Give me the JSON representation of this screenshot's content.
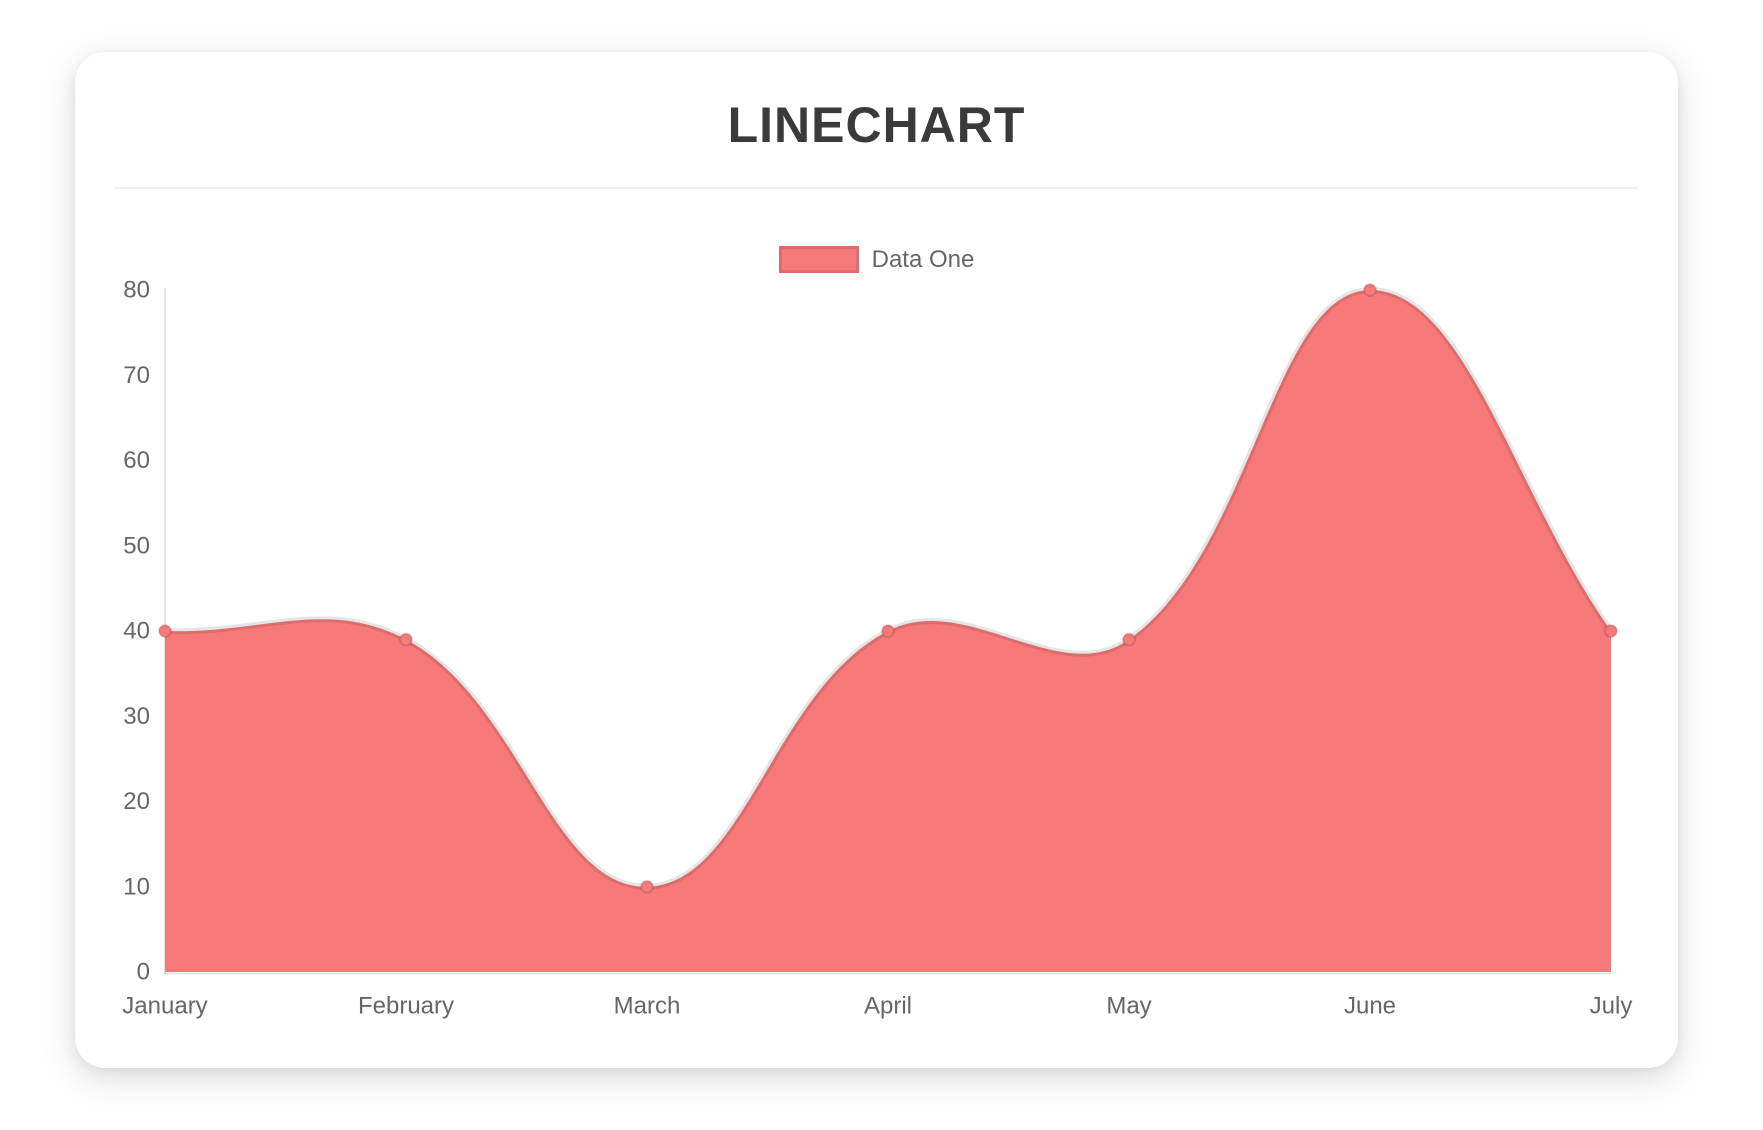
{
  "title": "LINECHART",
  "legend": {
    "label": "Data One",
    "box_color": "#f87979",
    "box_border_color": "rgba(0,0,0,0.1)",
    "text_color": "#666666"
  },
  "chart_data": {
    "type": "area",
    "categories": [
      "January",
      "February",
      "March",
      "April",
      "May",
      "June",
      "July"
    ],
    "series": [
      {
        "name": "Data One",
        "values": [
          40,
          39,
          10,
          40,
          39,
          80,
          40
        ]
      }
    ],
    "title": "LINECHART",
    "xlabel": "",
    "ylabel": "",
    "ylim": [
      0,
      80
    ],
    "y_ticks": [
      0,
      10,
      20,
      30,
      40,
      50,
      60,
      70,
      80
    ],
    "grid": false,
    "legend_position": "top",
    "curve_tension": 0.4,
    "fill_color": "#f87979",
    "line_color": "rgba(0,0,0,0.1)",
    "point_fill_color": "#f87979",
    "point_border_color": "rgba(0,0,0,0.12)",
    "axis_border_color": "rgba(0,0,0,0.1)",
    "tick_label_color": "#666666"
  }
}
